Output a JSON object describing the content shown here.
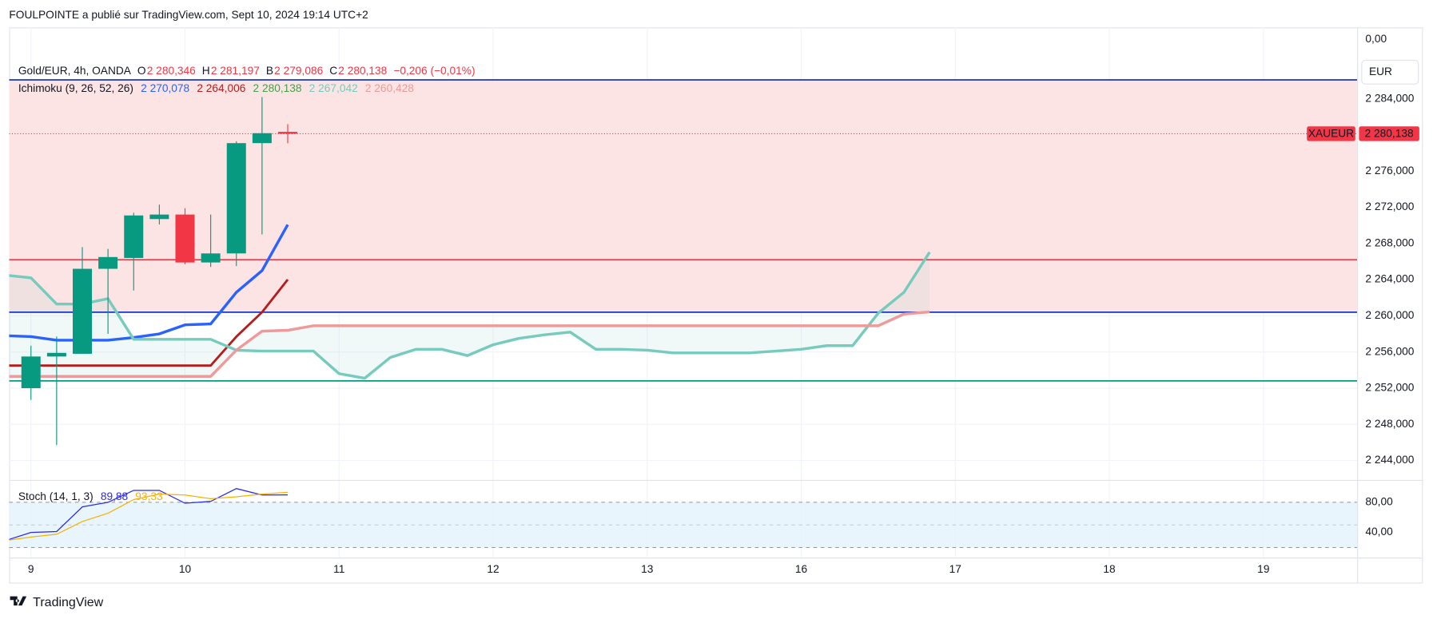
{
  "header": {
    "text": "FOULPOINTE a publié sur TradingView.com, Sept 10, 2024 19:14 UTC+2"
  },
  "footer": {
    "brand": "TradingView"
  },
  "chart_data": [
    {
      "type": "candlestick",
      "symbol": "Gold/EUR, 4h, OANDA",
      "ohlc_legend": [
        {
          "key": "O",
          "text": "2 280,346"
        },
        {
          "key": "H",
          "text": "2 281,197"
        },
        {
          "key": "B",
          "text": "2 279,086"
        },
        {
          "key": "C",
          "text": "2 280,138"
        }
      ],
      "change": "−0,206 (−0,01%)",
      "currency": "EUR",
      "scale_top_label": "0,00",
      "x": [
        0,
        1,
        2,
        3,
        4,
        5,
        6,
        7,
        8,
        9,
        10
      ],
      "open": [
        2252.0,
        2255.5,
        2255.8,
        2265.2,
        2266.4,
        2270.7,
        2271.2,
        2265.9,
        2266.9,
        2279.1,
        2280.346
      ],
      "high": [
        2256.7,
        2257.7,
        2267.6,
        2267.4,
        2271.4,
        2272.3,
        2271.9,
        2271.2,
        2279.3,
        2284.2,
        2281.197
      ],
      "low": [
        2250.7,
        2245.7,
        2255.8,
        2258.0,
        2262.8,
        2270.1,
        2265.7,
        2265.4,
        2265.5,
        2269.0,
        2279.086
      ],
      "close": [
        2255.5,
        2255.9,
        2265.2,
        2266.5,
        2271.1,
        2271.2,
        2265.9,
        2266.9,
        2279.1,
        2280.2,
        2280.138
      ],
      "up_color": "#089981",
      "down_color": "#f23645",
      "xlim": [
        -0.85,
        51.65
      ],
      "xticks": [
        {
          "value": 0,
          "label": "9"
        },
        {
          "value": 6,
          "label": "10"
        },
        {
          "value": 12,
          "label": "11"
        },
        {
          "value": 18,
          "label": "12"
        },
        {
          "value": 24,
          "label": "13"
        },
        {
          "value": 30,
          "label": "16"
        },
        {
          "value": 36,
          "label": "17"
        },
        {
          "value": 42,
          "label": "18"
        },
        {
          "value": 48,
          "label": "19"
        }
      ],
      "ylim": [
        2241.9,
        2291.9
      ],
      "yticks": [
        {
          "value": 2244,
          "label": "2 244,000"
        },
        {
          "value": 2248,
          "label": "2 248,000"
        },
        {
          "value": 2252,
          "label": "2 252,000"
        },
        {
          "value": 2256,
          "label": "2 256,000"
        },
        {
          "value": 2260,
          "label": "2 260,000"
        },
        {
          "value": 2264,
          "label": "2 264,000"
        },
        {
          "value": 2268,
          "label": "2 268,000"
        },
        {
          "value": 2272,
          "label": "2 272,000"
        },
        {
          "value": 2276,
          "label": "2 276,000"
        },
        {
          "value": 2280,
          "label": "2 280,000"
        },
        {
          "value": 2284,
          "label": "2 284,000"
        }
      ],
      "grid": true,
      "zone": {
        "from": 2260.4,
        "to": 2286.1,
        "color": "#fde4e4"
      },
      "horizontal_lines": [
        {
          "value": 2286.1,
          "color": "#1a36b8"
        },
        {
          "value": 2266.2,
          "color": "#f23645"
        },
        {
          "value": 2260.4,
          "color": "#1a36b8"
        },
        {
          "value": 2252.8,
          "color": "#089981"
        }
      ],
      "last_price": {
        "value": 2280.138,
        "label": "2 280,138",
        "symbol": "XAUEUR",
        "color": "#f23645"
      },
      "indicator": {
        "name": "Ichimoku (9, 26, 52, 26)",
        "cloud_color": "#80cbc4",
        "series": [
          {
            "color": "#2962ff",
            "value_label": "2 270,078",
            "x": [
              -1,
              0,
              1,
              2,
              3,
              4,
              5,
              6,
              7,
              8,
              9,
              10
            ],
            "values": [
              2257.8,
              2257.7,
              2257.3,
              2257.3,
              2257.3,
              2257.6,
              2258.0,
              2259.0,
              2259.1,
              2262.6,
              2265.0,
              2270.078
            ]
          },
          {
            "color": "#b71c1c",
            "value_label": "2 264,006",
            "x": [
              -1,
              0,
              1,
              2,
              3,
              4,
              5,
              6,
              7,
              8,
              9,
              10
            ],
            "values": [
              2254.5,
              2254.5,
              2254.5,
              2254.5,
              2254.5,
              2254.5,
              2254.5,
              2254.5,
              2254.5,
              2257.7,
              2260.4,
              2264.006
            ]
          },
          {
            "color": "#43a047",
            "value_label": "2 280,138"
          },
          {
            "color": "#76cbbd",
            "value_label": "2 267,042",
            "x": [
              -1,
              0,
              1,
              2,
              3,
              4,
              5,
              6,
              7,
              8,
              9,
              10,
              11,
              12,
              13,
              14,
              15,
              16,
              17,
              18,
              19,
              20,
              21,
              22,
              23,
              24,
              25,
              26,
              27,
              28,
              29,
              30,
              31,
              32,
              33,
              34,
              35
            ],
            "values": [
              2264.5,
              2264.2,
              2261.3,
              2261.3,
              2261.9,
              2257.4,
              2257.4,
              2257.4,
              2257.4,
              2256.2,
              2256.1,
              2256.1,
              2256.1,
              2253.6,
              2253.1,
              2255.4,
              2256.3,
              2256.3,
              2255.6,
              2256.8,
              2257.5,
              2257.9,
              2258.2,
              2256.3,
              2256.3,
              2256.2,
              2255.9,
              2255.9,
              2255.9,
              2255.9,
              2256.1,
              2256.3,
              2256.7,
              2256.7,
              2260.3,
              2262.6,
              2267.042
            ]
          },
          {
            "color": "#ef9a9a",
            "value_label": "2 260,428",
            "x": [
              -1,
              0,
              1,
              2,
              3,
              4,
              5,
              6,
              7,
              8,
              9,
              10,
              11,
              12,
              13,
              14,
              15,
              16,
              17,
              18,
              19,
              20,
              21,
              22,
              23,
              24,
              25,
              26,
              27,
              28,
              29,
              30,
              31,
              32,
              33,
              34,
              35
            ],
            "values": [
              2253.3,
              2253.3,
              2253.3,
              2253.3,
              2253.3,
              2253.3,
              2253.3,
              2253.3,
              2253.3,
              2256.2,
              2258.3,
              2258.4,
              2258.9,
              2258.9,
              2258.9,
              2258.9,
              2258.9,
              2258.9,
              2258.9,
              2258.9,
              2258.9,
              2258.9,
              2258.9,
              2258.9,
              2258.9,
              2258.9,
              2258.9,
              2258.9,
              2258.9,
              2258.9,
              2258.9,
              2258.9,
              2258.9,
              2258.9,
              2258.9,
              2260.2,
              2260.428
            ]
          }
        ]
      }
    },
    {
      "type": "line",
      "title": "Stoch (14, 1, 3)",
      "xlim": [
        -0.85,
        51.65
      ],
      "ylim": [
        7.3,
        107.9
      ],
      "yticks": [
        {
          "value": 80,
          "label": "80,00"
        },
        {
          "value": 40,
          "label": "40,00"
        }
      ],
      "bands": [
        20,
        50,
        80
      ],
      "band_color": "#e3f2fd",
      "series": [
        {
          "color": "#2a2ae6",
          "value_label": "89,88",
          "x": [
            -1,
            0,
            1,
            2,
            3,
            4,
            5,
            6,
            7,
            8,
            9,
            10
          ],
          "values": [
            29.1,
            40.0,
            41.2,
            73.9,
            80.0,
            95.8,
            95.8,
            78.8,
            81.2,
            98.2,
            89.7,
            89.88
          ]
        },
        {
          "color": "#f5b301",
          "value_label": "93,33",
          "x": [
            -1,
            0,
            1,
            2,
            3,
            4,
            5,
            6,
            7,
            8,
            9,
            10
          ],
          "values": [
            29.1,
            33.9,
            37.6,
            54.5,
            65.5,
            83.6,
            90.9,
            89.7,
            84.8,
            87.3,
            90.9,
            93.33
          ]
        }
      ]
    }
  ]
}
